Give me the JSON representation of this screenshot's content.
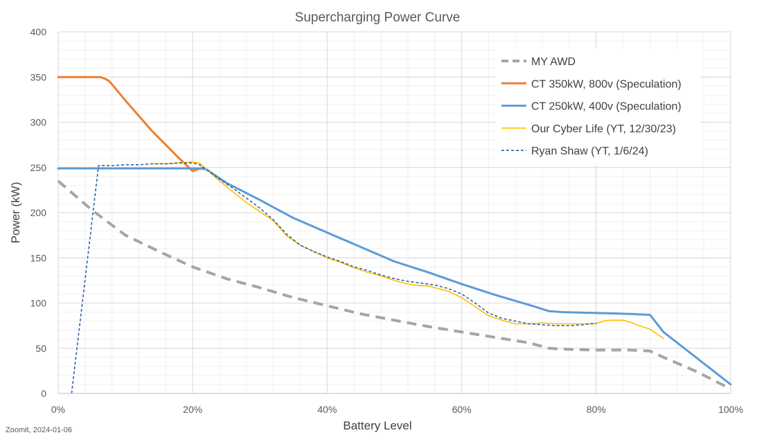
{
  "chart_data": {
    "type": "line",
    "title": "Supercharging Power Curve",
    "xlabel": "Battery Level",
    "ylabel": "Power (kW)",
    "xlim": [
      0,
      100
    ],
    "ylim": [
      0,
      400
    ],
    "x_ticks": [
      0,
      20,
      40,
      60,
      80,
      100
    ],
    "x_tick_labels": [
      "0%",
      "20%",
      "40%",
      "60%",
      "80%",
      "100%"
    ],
    "y_ticks": [
      0,
      50,
      100,
      150,
      200,
      250,
      300,
      350,
      400
    ],
    "y_tick_labels": [
      "0",
      "50",
      "100",
      "150",
      "200",
      "250",
      "300",
      "350",
      "400"
    ],
    "grid": true,
    "minor_grid": true,
    "legend_position": "top-right",
    "series": [
      {
        "name": "MY AWD",
        "color": "#a5a5a5",
        "style": "dashed-thick",
        "x": [
          0,
          5,
          10,
          15,
          20,
          25,
          30,
          35,
          40,
          45,
          50,
          55,
          60,
          65,
          70,
          73,
          75,
          80,
          85,
          88,
          90,
          95,
          100
        ],
        "y": [
          235,
          203,
          175,
          157,
          140,
          127,
          117,
          106,
          97,
          88,
          81,
          74,
          68,
          62,
          56,
          50,
          49,
          48,
          48,
          47,
          40,
          24,
          5
        ]
      },
      {
        "name": "CT 350kW, 800v (Speculation)",
        "color": "#ed7d31",
        "style": "solid",
        "x": [
          0,
          3,
          6.3,
          7,
          7.5,
          8,
          10,
          12,
          14,
          16,
          18,
          20,
          21.5
        ],
        "y": [
          350,
          350,
          350,
          348,
          346,
          342,
          324,
          307,
          290,
          275,
          260,
          246,
          250
        ]
      },
      {
        "name": "CT 250kW, 400v (Speculation)",
        "color": "#5b9bd5",
        "style": "solid",
        "x": [
          0,
          5,
          10,
          15,
          21,
          22,
          25,
          30,
          35,
          40,
          45,
          50,
          55,
          60,
          65,
          70,
          73,
          75,
          80,
          85,
          88,
          90,
          95,
          100
        ],
        "y": [
          249,
          249,
          249,
          249,
          249,
          248,
          233,
          214,
          194,
          178,
          162,
          146,
          134,
          121,
          109,
          98,
          91,
          90,
          89,
          88,
          87,
          68,
          39,
          10
        ]
      },
      {
        "name": "Our Cyber Life (YT, 12/30/23)",
        "color": "#ffc000",
        "style": "solid-thin",
        "x": [
          14,
          16,
          18,
          20,
          21,
          22,
          24,
          26,
          28,
          30,
          32,
          34,
          36,
          38,
          40,
          42,
          44,
          46,
          48,
          50,
          52,
          54,
          55,
          56,
          58,
          60,
          62,
          64,
          66,
          68,
          70,
          72,
          74,
          76,
          78,
          80,
          81,
          82,
          83,
          84,
          85,
          86,
          88,
          90
        ],
        "y": [
          254,
          254,
          255,
          256,
          255,
          248,
          235,
          223,
          211,
          201,
          191,
          174,
          164,
          157,
          150,
          145,
          139,
          134,
          130,
          125,
          121,
          119,
          119,
          117,
          113,
          106,
          96,
          86,
          81,
          77,
          77,
          78,
          77,
          77,
          77,
          77,
          80,
          81,
          81,
          81,
          79,
          76,
          71,
          61
        ]
      },
      {
        "name": "Ryan Shaw (YT, 1/6/24)",
        "color": "#2e5ea8",
        "style": "dashed-thin",
        "x": [
          2,
          6,
          8,
          10,
          12,
          14,
          16,
          18,
          19,
          20,
          21,
          22,
          24,
          26,
          28,
          30,
          32,
          34,
          36,
          38,
          40,
          42,
          44,
          46,
          48,
          50,
          52,
          54,
          56,
          58,
          60,
          62,
          64,
          66,
          68,
          70,
          72,
          74,
          76,
          78,
          80
        ],
        "y": [
          0,
          252,
          252,
          253,
          253,
          254,
          254,
          255,
          255,
          255,
          253,
          248,
          237,
          227,
          216,
          205,
          192,
          176,
          164,
          157,
          151,
          146,
          140,
          136,
          131,
          127,
          124,
          122,
          120,
          116,
          110,
          100,
          89,
          83,
          80,
          77,
          76,
          75,
          75,
          76,
          78
        ]
      }
    ],
    "caption": "Zoomit, 2024-01-06"
  }
}
